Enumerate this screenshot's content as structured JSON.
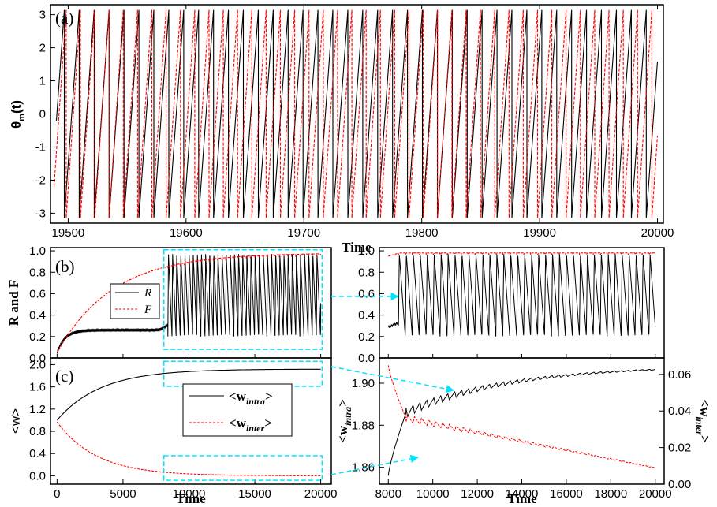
{
  "colors": {
    "black": "#000000",
    "red": "#ff0000",
    "cyan": "#00e5ff"
  },
  "chart_data": [
    {
      "id": "a",
      "type": "line",
      "panel_label": "(a)",
      "xlabel": "Time",
      "ylabel_main": "θ",
      "ylabel_sub1": "m",
      "ylabel_sub2": "(t)",
      "xlim": [
        19485,
        20005
      ],
      "ylim": [
        -3.3,
        3.3
      ],
      "xticks": [
        19500,
        19600,
        19700,
        19800,
        19900,
        20000
      ],
      "yticks": [
        -3,
        -2,
        -1,
        0,
        1,
        2,
        3
      ],
      "series": [
        {
          "color": "#000000",
          "dash": "solid",
          "start": 19490,
          "period": 12.66,
          "phase_at_start": -0.2,
          "x_end": 20000
        },
        {
          "color": "#ff0000",
          "dash": "dashed",
          "start": 19488,
          "period": 12.12,
          "phase_at_start": -2.2,
          "x_end": 20000
        }
      ]
    },
    {
      "id": "b",
      "type": "line",
      "panel_label": "(b)",
      "ylabel": "R and F",
      "xlim": [
        -500,
        20800
      ],
      "ylim": [
        0.0,
        1.03
      ],
      "yticks": [
        0.0,
        0.2,
        0.4,
        0.6,
        0.8,
        1.0
      ],
      "legend": {
        "position": "center-left",
        "entries": [
          {
            "label": "R",
            "color": "#000000",
            "dash": "solid"
          },
          {
            "label": "F",
            "color": "#ff0000",
            "dash": "dashed"
          }
        ]
      },
      "series": [
        {
          "name": "R",
          "color": "#000000",
          "plateau": 0.26,
          "sync_time": 8400,
          "osc_min": 0.2,
          "osc_max": 0.97,
          "osc_period": 313
        },
        {
          "name": "F",
          "color": "#ff0000",
          "start": 0.05,
          "tau": 4200,
          "final": 0.98
        }
      ],
      "highlight": {
        "x": [
          8100,
          20100
        ],
        "y": [
          0.08,
          1.01
        ]
      }
    },
    {
      "id": "c",
      "type": "line",
      "panel_label": "(c)",
      "xlabel": "Time",
      "ylabel": "<w>",
      "xlim": [
        -500,
        20800
      ],
      "ylim": [
        -0.15,
        2.12
      ],
      "xticks": [
        0,
        5000,
        10000,
        15000,
        20000
      ],
      "yticks": [
        0.0,
        0.4,
        0.8,
        1.2,
        1.6,
        2.0
      ],
      "legend": {
        "position": "center-right",
        "entries": [
          {
            "label": "<w",
            "sub": "intra",
            "close": ">",
            "color": "#000000",
            "dash": "solid"
          },
          {
            "label": "<w",
            "sub": "inter",
            "close": ">",
            "color": "#ff0000",
            "dash": "dashed"
          }
        ]
      },
      "series": [
        {
          "name": "intra",
          "color": "#000000",
          "start": 1.0,
          "final": 1.92,
          "tau": 3300
        },
        {
          "name": "inter",
          "color": "#ff0000",
          "start": 0.97,
          "final": 0.0,
          "tau": 3000
        }
      ],
      "highlight_boxes": [
        {
          "x": [
            8100,
            20100
          ],
          "y": [
            1.61,
            2.06
          ]
        },
        {
          "x": [
            8100,
            20100
          ],
          "y": [
            -0.08,
            0.36
          ]
        }
      ]
    },
    {
      "id": "b2",
      "type": "line",
      "xlim": [
        7600,
        20400
      ],
      "ylim": [
        0.0,
        1.03
      ],
      "yticks": [
        0.0,
        0.2,
        0.4,
        0.6,
        0.8,
        1.0
      ],
      "series": [
        {
          "name": "R",
          "color": "#000000",
          "plateau": 0.28,
          "sync_time": 8450,
          "osc_min": 0.2,
          "osc_max": 0.97,
          "osc_period": 313
        },
        {
          "name": "F",
          "color": "#ff0000",
          "start": 0.925,
          "final": 0.98
        }
      ]
    },
    {
      "id": "c2",
      "type": "line",
      "xlabel": "Time",
      "ylabel_left": "<w",
      "ylabel_left_sub": "intra",
      "ylabel_right": "<w",
      "ylabel_right_sub": "inter",
      "ylabel_close": ">",
      "xlim": [
        7600,
        20400
      ],
      "ylim_left": [
        1.852,
        1.912
      ],
      "ylim_right": [
        0.0,
        0.069
      ],
      "xticks": [
        8000,
        10000,
        12000,
        14000,
        16000,
        18000,
        20000
      ],
      "yticks_left": [
        1.86,
        1.88,
        1.9
      ],
      "yticks_right": [
        0.0,
        0.02,
        0.04,
        0.06
      ],
      "ytick_labels_right": [
        "0.00",
        "0.02",
        "0.04",
        "0.06"
      ],
      "series": [
        {
          "name": "intra",
          "axis": "left",
          "color": "#000000",
          "start": 1.856,
          "jump_to": 1.886,
          "jump_time": 8800,
          "final": 1.9085,
          "osc_amp": 0.0045,
          "osc_period": 313
        },
        {
          "name": "inter",
          "axis": "right",
          "color": "#ff0000",
          "start": 0.065,
          "jump_to": 0.036,
          "jump_time": 8800,
          "final": 0.0075,
          "osc_amp": 0.004,
          "osc_period": 313
        }
      ]
    }
  ]
}
